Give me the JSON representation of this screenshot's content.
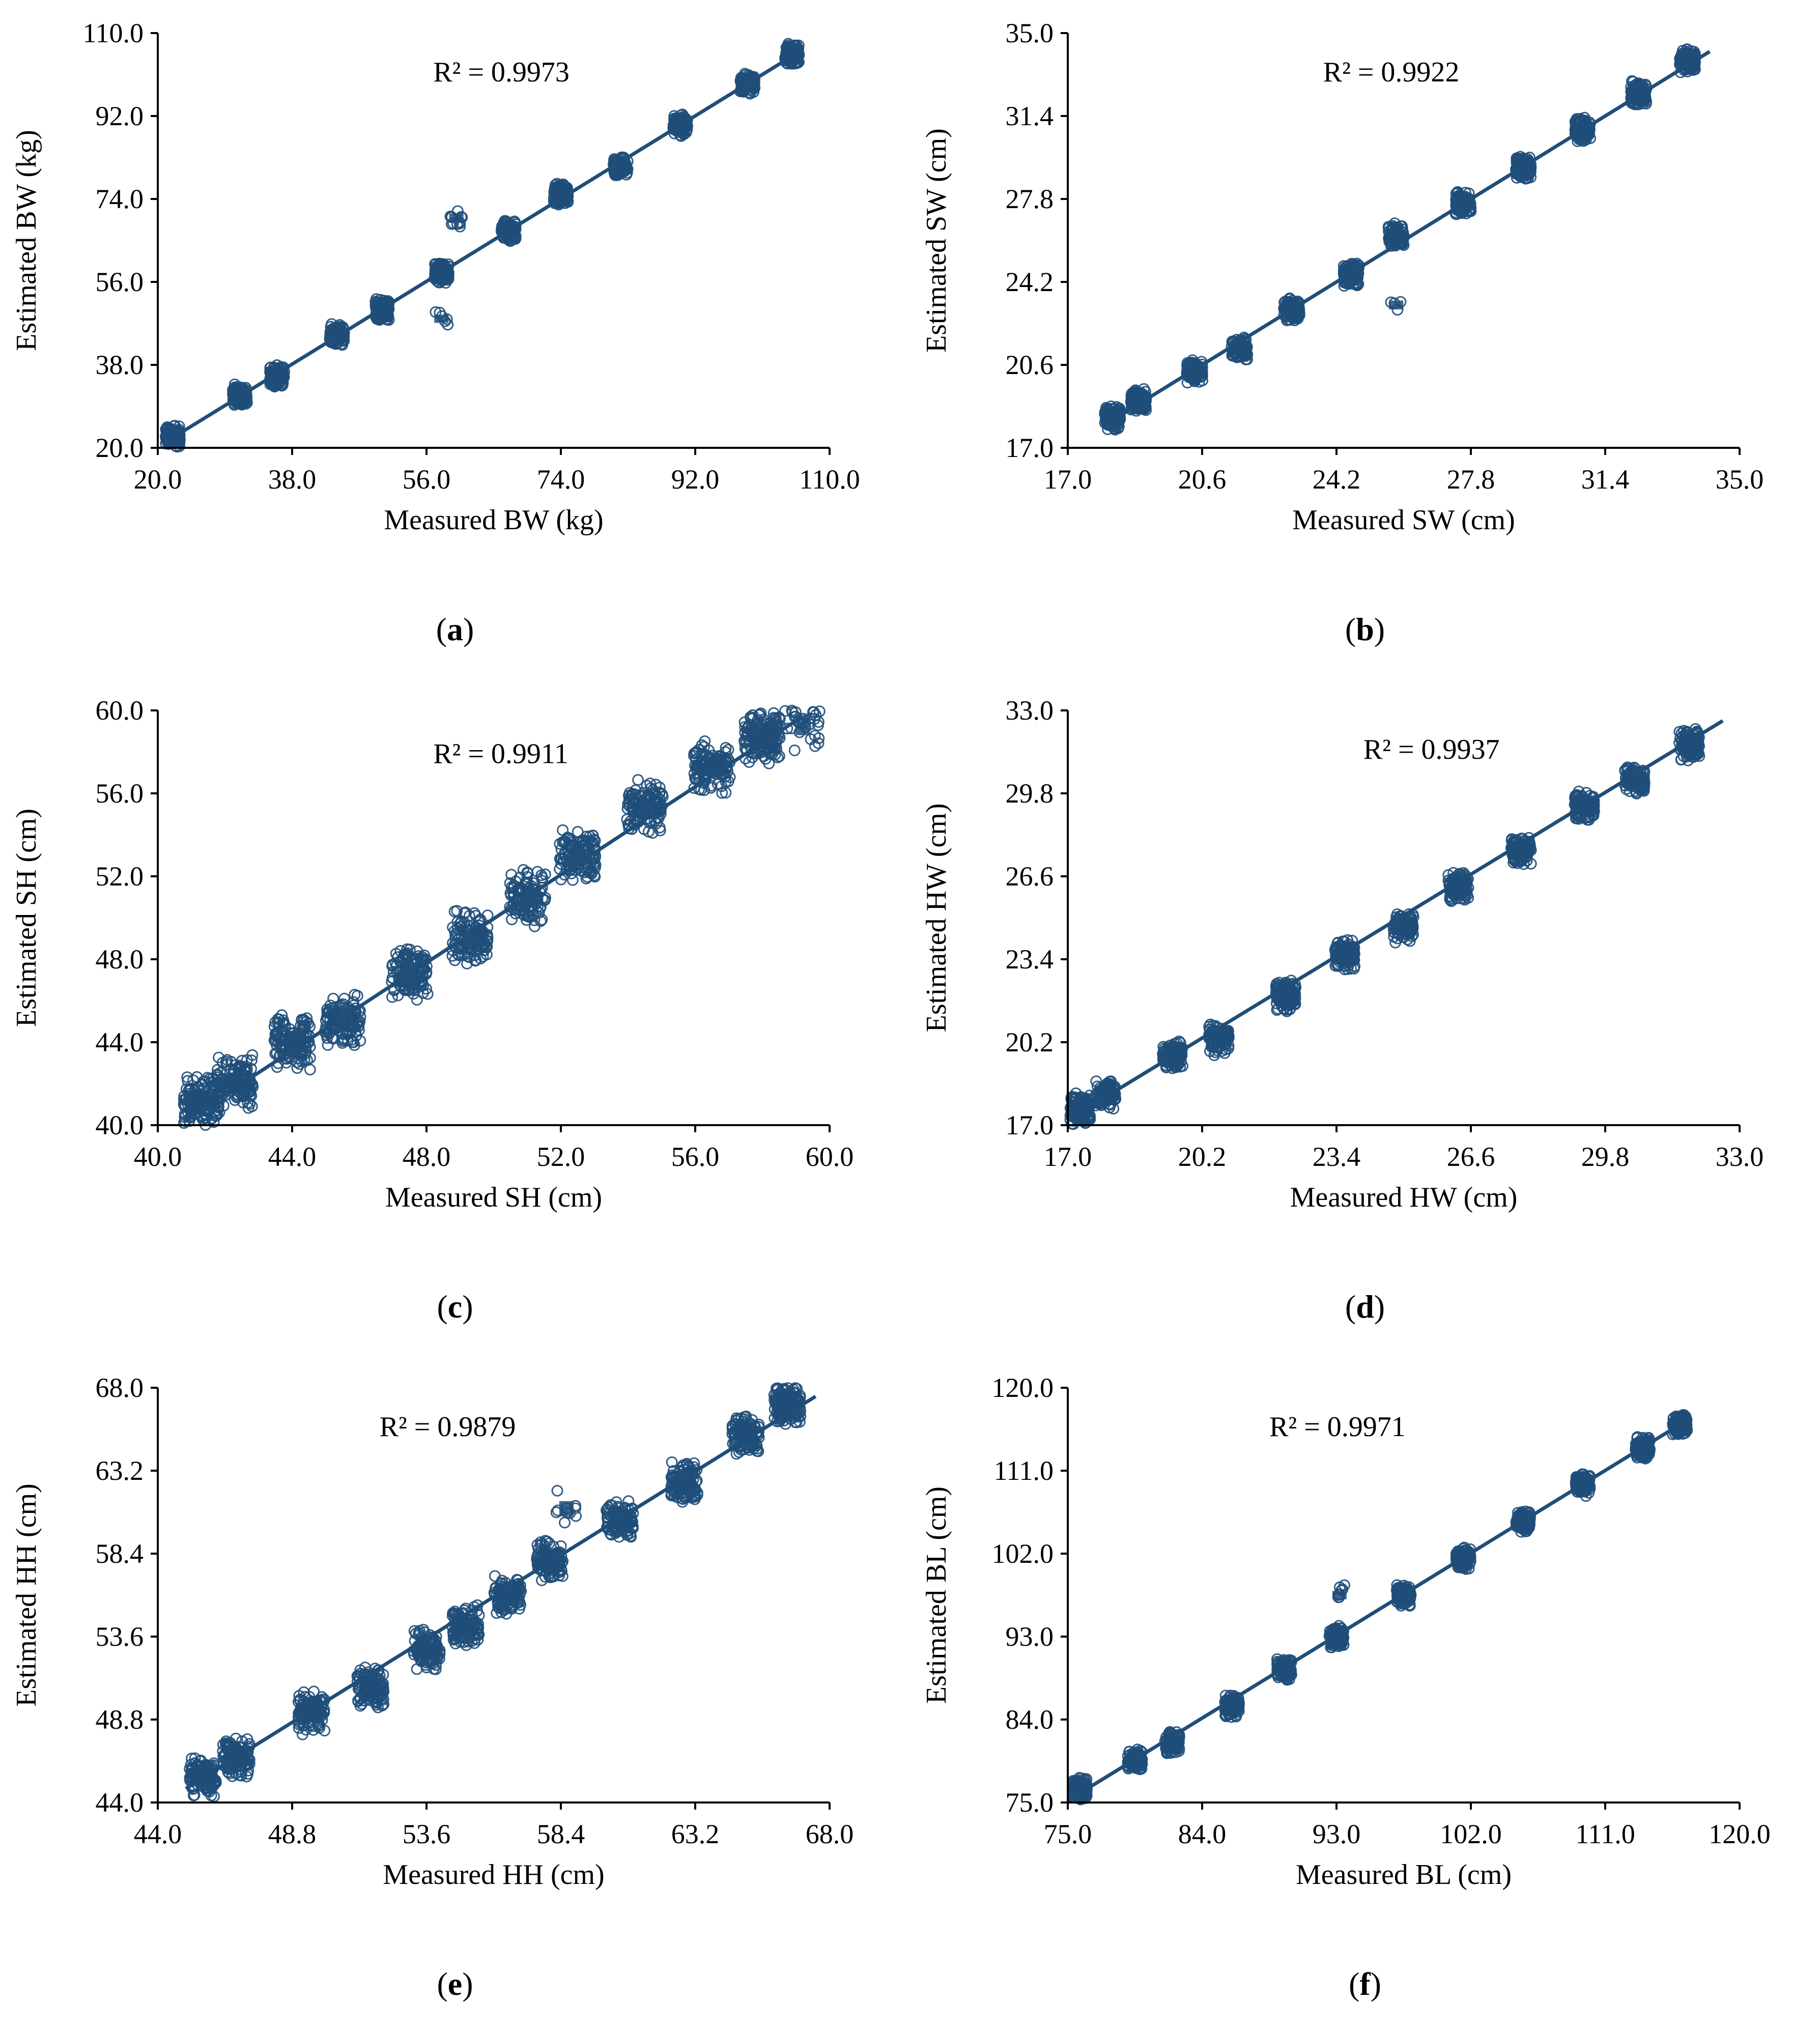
{
  "colors": {
    "marker": "#1f4e79",
    "trend": "#1f4e79",
    "axis": "#000000"
  },
  "chart_data": [
    {
      "id": "a",
      "type": "scatter",
      "caption": "a",
      "xlabel": "Measured BW (kg)",
      "ylabel": "Estimated BW (kg)",
      "xlim": [
        20.0,
        110.0
      ],
      "ylim": [
        20.0,
        110.0
      ],
      "xticks": [
        "20.0",
        "38.0",
        "56.0",
        "74.0",
        "92.0",
        "110.0"
      ],
      "yticks": [
        "20.0",
        "38.0",
        "56.0",
        "74.0",
        "92.0",
        "110.0"
      ],
      "r2_label": "R² = 0.9973",
      "data_range": [
        21.0,
        106.0
      ],
      "spread": 1.6,
      "trend": [
        [
          21.0,
          21.2
        ],
        [
          106.0,
          106.0
        ]
      ],
      "clusters": [
        {
          "x": 22.0,
          "y": 22.5,
          "n": 120
        },
        {
          "x": 31.0,
          "y": 31.5,
          "n": 90
        },
        {
          "x": 36.0,
          "y": 35.5,
          "n": 90
        },
        {
          "x": 44.0,
          "y": 44.5,
          "n": 110
        },
        {
          "x": 50.0,
          "y": 50.0,
          "n": 110
        },
        {
          "x": 58.0,
          "y": 58.0,
          "n": 110
        },
        {
          "x": 60.0,
          "y": 70.0,
          "n": 12
        },
        {
          "x": 58.0,
          "y": 48.0,
          "n": 6
        },
        {
          "x": 67.0,
          "y": 67.0,
          "n": 90
        },
        {
          "x": 74.0,
          "y": 75.0,
          "n": 110
        },
        {
          "x": 82.0,
          "y": 81.0,
          "n": 110
        },
        {
          "x": 90.0,
          "y": 90.0,
          "n": 110
        },
        {
          "x": 99.0,
          "y": 99.0,
          "n": 90
        },
        {
          "x": 105.0,
          "y": 105.5,
          "n": 110
        }
      ]
    },
    {
      "id": "b",
      "type": "scatter",
      "caption": "b",
      "xlabel": "Measured SW (cm)",
      "ylabel": "Estimated SW (cm)",
      "xlim": [
        17.0,
        35.0
      ],
      "ylim": [
        17.0,
        35.0
      ],
      "xticks": [
        "17.0",
        "20.6",
        "24.2",
        "27.8",
        "31.4",
        "35.0"
      ],
      "yticks": [
        "17.0",
        "20.6",
        "24.2",
        "27.8",
        "31.4",
        "35.0"
      ],
      "r2_label": "R² = 0.9922",
      "data_range": [
        18.0,
        34.2
      ],
      "spread": 0.35,
      "trend": [
        [
          18.0,
          18.0
        ],
        [
          34.2,
          34.2
        ]
      ],
      "clusters": [
        {
          "x": 18.2,
          "y": 18.3,
          "n": 130
        },
        {
          "x": 18.9,
          "y": 19.0,
          "n": 110
        },
        {
          "x": 20.4,
          "y": 20.3,
          "n": 110
        },
        {
          "x": 21.6,
          "y": 21.3,
          "n": 90
        },
        {
          "x": 23.0,
          "y": 23.0,
          "n": 110
        },
        {
          "x": 24.6,
          "y": 24.5,
          "n": 110
        },
        {
          "x": 25.8,
          "y": 26.2,
          "n": 90
        },
        {
          "x": 25.8,
          "y": 23.2,
          "n": 4
        },
        {
          "x": 27.6,
          "y": 27.6,
          "n": 110
        },
        {
          "x": 29.2,
          "y": 29.2,
          "n": 110
        },
        {
          "x": 30.8,
          "y": 30.8,
          "n": 110
        },
        {
          "x": 32.3,
          "y": 32.4,
          "n": 110
        },
        {
          "x": 33.6,
          "y": 33.8,
          "n": 130
        }
      ]
    },
    {
      "id": "c",
      "type": "scatter",
      "caption": "c",
      "xlabel": "Measured SH (cm)",
      "ylabel": "Estimated SH (cm)",
      "xlim": [
        40.0,
        60.0
      ],
      "ylim": [
        40.0,
        60.0
      ],
      "xticks": [
        "40.0",
        "44.0",
        "48.0",
        "52.0",
        "56.0",
        "60.0"
      ],
      "yticks": [
        "40.0",
        "44.0",
        "48.0",
        "52.0",
        "56.0",
        "60.0"
      ],
      "r2_label": "R² = 0.9911",
      "data_range": [
        40.8,
        59.8
      ],
      "spread": 0.9,
      "trend": [
        [
          40.8,
          40.2
        ],
        [
          59.0,
          59.5
        ]
      ],
      "clusters": [
        {
          "x": 41.3,
          "y": 41.2,
          "n": 130
        },
        {
          "x": 42.3,
          "y": 42.0,
          "n": 120
        },
        {
          "x": 44.0,
          "y": 44.0,
          "n": 130
        },
        {
          "x": 45.5,
          "y": 45.0,
          "n": 110
        },
        {
          "x": 47.5,
          "y": 47.3,
          "n": 110
        },
        {
          "x": 49.3,
          "y": 49.0,
          "n": 110
        },
        {
          "x": 51.0,
          "y": 51.0,
          "n": 110
        },
        {
          "x": 52.5,
          "y": 53.0,
          "n": 110
        },
        {
          "x": 54.5,
          "y": 55.3,
          "n": 110
        },
        {
          "x": 56.5,
          "y": 57.3,
          "n": 110
        },
        {
          "x": 58.0,
          "y": 58.8,
          "n": 140
        },
        {
          "x": 59.2,
          "y": 59.3,
          "n": 30
        }
      ]
    },
    {
      "id": "d",
      "type": "scatter",
      "caption": "d",
      "xlabel": "Measured HW (cm)",
      "ylabel": "Estimated HW (cm)",
      "xlim": [
        17.0,
        33.0
      ],
      "ylim": [
        17.0,
        33.0
      ],
      "xticks": [
        "17.0",
        "20.2",
        "23.4",
        "26.6",
        "29.8",
        "33.0"
      ],
      "yticks": [
        "17.0",
        "20.2",
        "23.4",
        "26.6",
        "29.8",
        "33.0"
      ],
      "r2_label": "R² = 0.9937",
      "data_range": [
        17.0,
        32.8
      ],
      "spread": 0.4,
      "trend": [
        [
          17.0,
          17.2
        ],
        [
          32.6,
          32.6
        ]
      ],
      "clusters": [
        {
          "x": 17.3,
          "y": 17.6,
          "n": 130
        },
        {
          "x": 17.9,
          "y": 18.2,
          "n": 110
        },
        {
          "x": 19.5,
          "y": 19.7,
          "n": 110
        },
        {
          "x": 20.6,
          "y": 20.3,
          "n": 90
        },
        {
          "x": 22.2,
          "y": 22.0,
          "n": 110
        },
        {
          "x": 23.6,
          "y": 23.6,
          "n": 110
        },
        {
          "x": 25.0,
          "y": 24.6,
          "n": 90
        },
        {
          "x": 26.3,
          "y": 26.2,
          "n": 110
        },
        {
          "x": 27.8,
          "y": 27.6,
          "n": 110
        },
        {
          "x": 29.3,
          "y": 29.3,
          "n": 110
        },
        {
          "x": 30.5,
          "y": 30.3,
          "n": 110
        },
        {
          "x": 31.8,
          "y": 31.7,
          "n": 130
        }
      ]
    },
    {
      "id": "e",
      "type": "scatter",
      "caption": "e",
      "xlabel": "Measured HH (cm)",
      "ylabel": "Estimated HH (cm)",
      "xlim": [
        44.0,
        68.0
      ],
      "ylim": [
        44.0,
        68.0
      ],
      "xticks": [
        "44.0",
        "48.8",
        "53.6",
        "58.4",
        "63.2",
        "68.0"
      ],
      "yticks": [
        "44.0",
        "48.8",
        "53.6",
        "58.4",
        "63.2",
        "68.0"
      ],
      "r2_label": "R² = 0.9879",
      "data_range": [
        45.0,
        67.5
      ],
      "spread": 0.8,
      "trend": [
        [
          45.0,
          44.8
        ],
        [
          67.5,
          67.5
        ]
      ],
      "clusters": [
        {
          "x": 45.6,
          "y": 45.5,
          "n": 120
        },
        {
          "x": 46.8,
          "y": 46.6,
          "n": 110
        },
        {
          "x": 49.5,
          "y": 49.2,
          "n": 110
        },
        {
          "x": 51.6,
          "y": 50.6,
          "n": 110
        },
        {
          "x": 53.6,
          "y": 52.8,
          "n": 110
        },
        {
          "x": 55.0,
          "y": 54.2,
          "n": 110
        },
        {
          "x": 56.5,
          "y": 56.0,
          "n": 110
        },
        {
          "x": 58.0,
          "y": 58.0,
          "n": 110
        },
        {
          "x": 58.6,
          "y": 61.0,
          "n": 10
        },
        {
          "x": 60.5,
          "y": 60.3,
          "n": 110
        },
        {
          "x": 62.8,
          "y": 62.5,
          "n": 110
        },
        {
          "x": 65.0,
          "y": 65.2,
          "n": 120
        },
        {
          "x": 66.5,
          "y": 67.0,
          "n": 130
        }
      ]
    },
    {
      "id": "f",
      "type": "scatter",
      "caption": "f",
      "xlabel": "Measured BL (cm)",
      "ylabel": "Estimated BL (cm)",
      "xlim": [
        75.0,
        120.0
      ],
      "ylim": [
        75.0,
        120.0
      ],
      "xticks": [
        "75.0",
        "84.0",
        "93.0",
        "102.0",
        "111.0",
        "120.0"
      ],
      "yticks": [
        "75.0",
        "84.0",
        "93.0",
        "102.0",
        "111.0",
        "120.0"
      ],
      "r2_label": "R² = 0.9971",
      "data_range": [
        75.0,
        117.0
      ],
      "spread": 0.8,
      "trend": [
        [
          75.0,
          75.2
        ],
        [
          116.5,
          116.5
        ]
      ],
      "clusters": [
        {
          "x": 75.8,
          "y": 76.5,
          "n": 130
        },
        {
          "x": 79.5,
          "y": 79.5,
          "n": 100
        },
        {
          "x": 82.0,
          "y": 81.5,
          "n": 90
        },
        {
          "x": 86.0,
          "y": 85.5,
          "n": 110
        },
        {
          "x": 89.5,
          "y": 89.5,
          "n": 110
        },
        {
          "x": 93.0,
          "y": 93.0,
          "n": 110
        },
        {
          "x": 93.2,
          "y": 97.5,
          "n": 8
        },
        {
          "x": 97.5,
          "y": 97.5,
          "n": 110
        },
        {
          "x": 101.5,
          "y": 101.5,
          "n": 110
        },
        {
          "x": 105.5,
          "y": 105.5,
          "n": 110
        },
        {
          "x": 109.5,
          "y": 109.5,
          "n": 110
        },
        {
          "x": 113.5,
          "y": 113.5,
          "n": 110
        },
        {
          "x": 116.0,
          "y": 116.0,
          "n": 110
        }
      ]
    }
  ]
}
